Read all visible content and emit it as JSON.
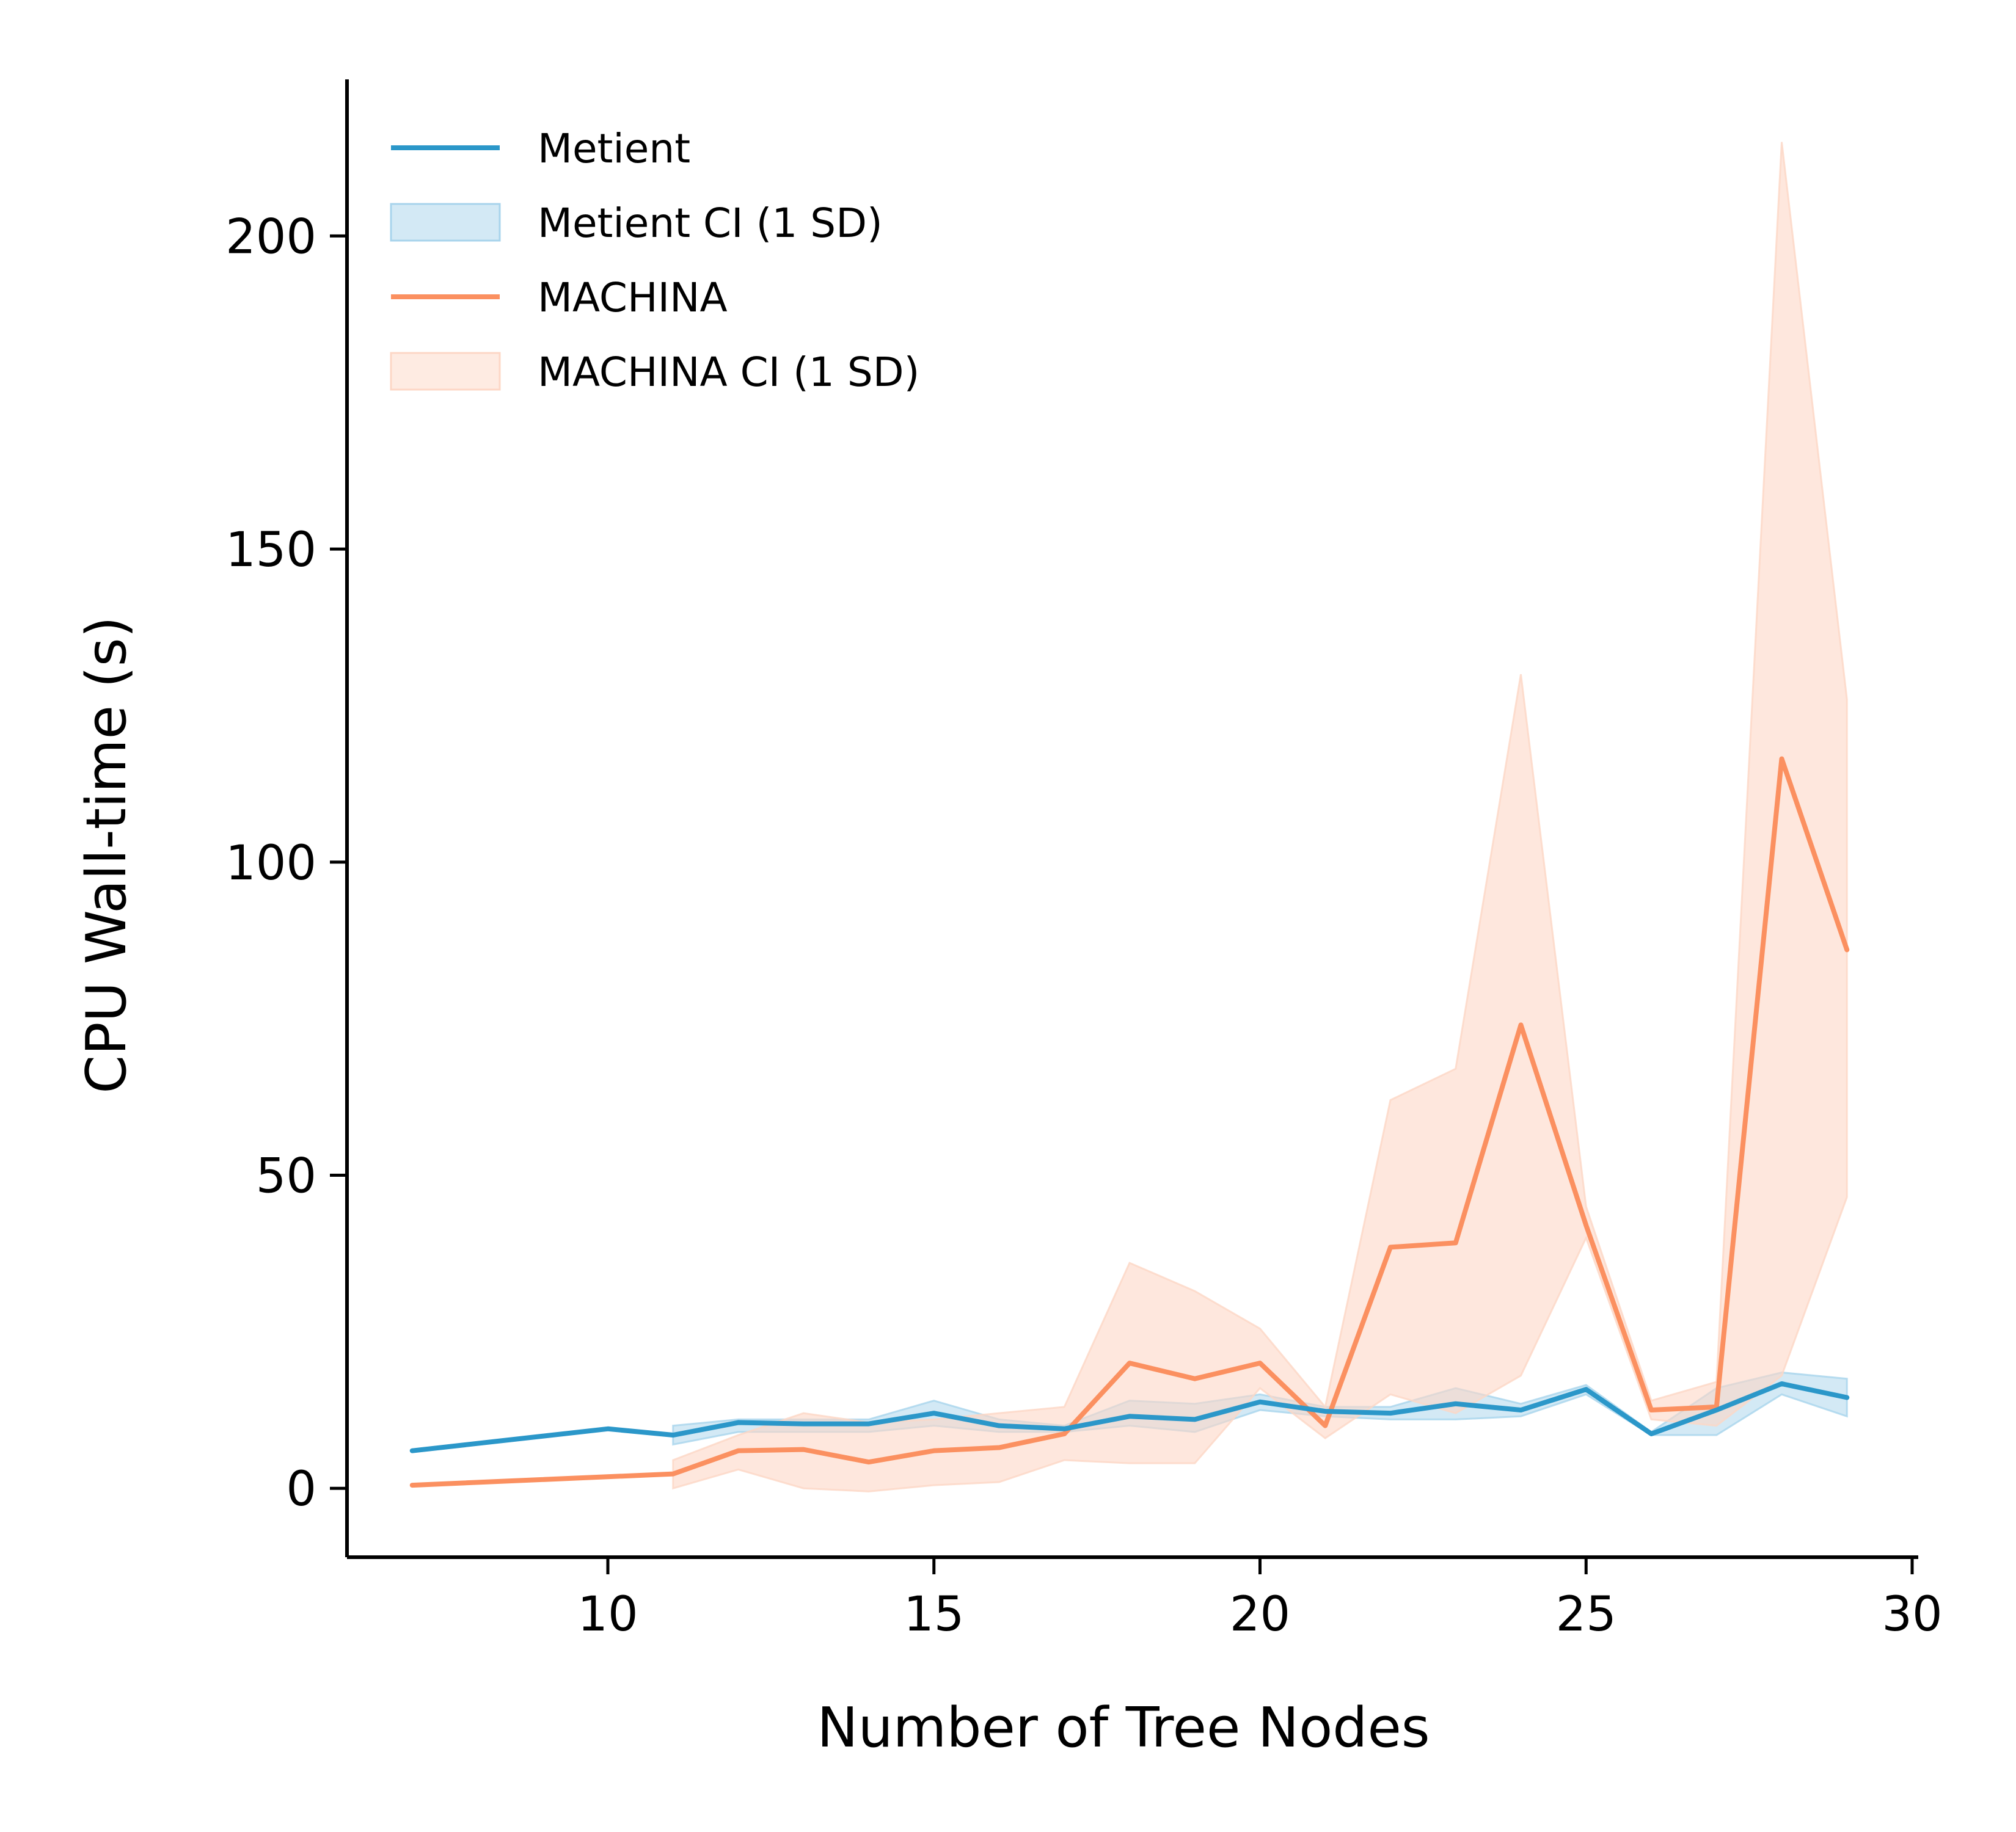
{
  "chart_data": {
    "type": "line",
    "xlabel": "Number of Tree Nodes",
    "ylabel": "CPU Wall-time (s)",
    "xlim": [
      6,
      30
    ],
    "ylim": [
      -11,
      225
    ],
    "xticks": [
      10,
      15,
      20,
      25,
      30
    ],
    "yticks": [
      0,
      50,
      100,
      150,
      200
    ],
    "legend_position": "top-left",
    "series": [
      {
        "name": "Metient",
        "ci_name": "Metient CI (1 SD)",
        "color": "#2b97c9",
        "ci_color": "#a8d4ec",
        "x": [
          7,
          10,
          11,
          12,
          13,
          14,
          15,
          16,
          17,
          18,
          19,
          20,
          21,
          22,
          23,
          24,
          25,
          26,
          27,
          28,
          29
        ],
        "y": [
          6,
          9.5,
          8.5,
          10.5,
          10.3,
          10.3,
          12,
          10,
          9.5,
          11.5,
          11,
          13.8,
          12.3,
          12,
          13.5,
          12.5,
          15.8,
          8.7,
          12.5,
          16.7,
          14.5
        ],
        "ci_x": [
          11,
          12,
          13,
          14,
          15,
          16,
          17,
          18,
          19,
          20,
          21,
          22,
          23,
          24,
          25,
          26,
          27,
          28,
          29
        ],
        "ci_lower": [
          7,
          9,
          9,
          9,
          10,
          9,
          9,
          10,
          9,
          12.5,
          11.5,
          11,
          11,
          11.5,
          15,
          8.5,
          8.5,
          15,
          11.5
        ],
        "ci_upper": [
          10,
          11,
          11,
          11,
          14,
          11,
          10,
          14,
          13.5,
          15,
          13,
          13,
          16,
          13.5,
          16.5,
          9,
          16,
          18.5,
          17.5
        ]
      },
      {
        "name": "MACHINA",
        "ci_name": "MACHINA CI (1 SD)",
        "color": "#fb9060",
        "ci_color": "#fdd7c6",
        "x": [
          7,
          11,
          12,
          13,
          14,
          15,
          16,
          17,
          18,
          19,
          20,
          21,
          22,
          23,
          24,
          25,
          26,
          27,
          28,
          29
        ],
        "y": [
          0.5,
          2.3,
          6,
          6.2,
          4.2,
          6,
          6.5,
          8.7,
          20,
          17.5,
          20,
          10,
          38.5,
          39.2,
          74,
          42,
          12.5,
          13,
          116.5,
          86
        ],
        "ci_x": [
          11,
          12,
          13,
          14,
          15,
          16,
          17,
          18,
          19,
          20,
          21,
          22,
          23,
          24,
          25,
          26,
          27,
          28,
          29
        ],
        "ci_lower": [
          0,
          3,
          0,
          -0.5,
          0.5,
          1,
          4.5,
          4,
          4,
          16,
          8,
          15,
          12,
          18,
          40,
          11,
          10,
          18,
          46.5
        ],
        "ci_upper": [
          4.5,
          8.5,
          12,
          10.5,
          11,
          12,
          13,
          36,
          31.5,
          25.5,
          13,
          62,
          67,
          130,
          45,
          14,
          17,
          215,
          126
        ]
      }
    ]
  }
}
